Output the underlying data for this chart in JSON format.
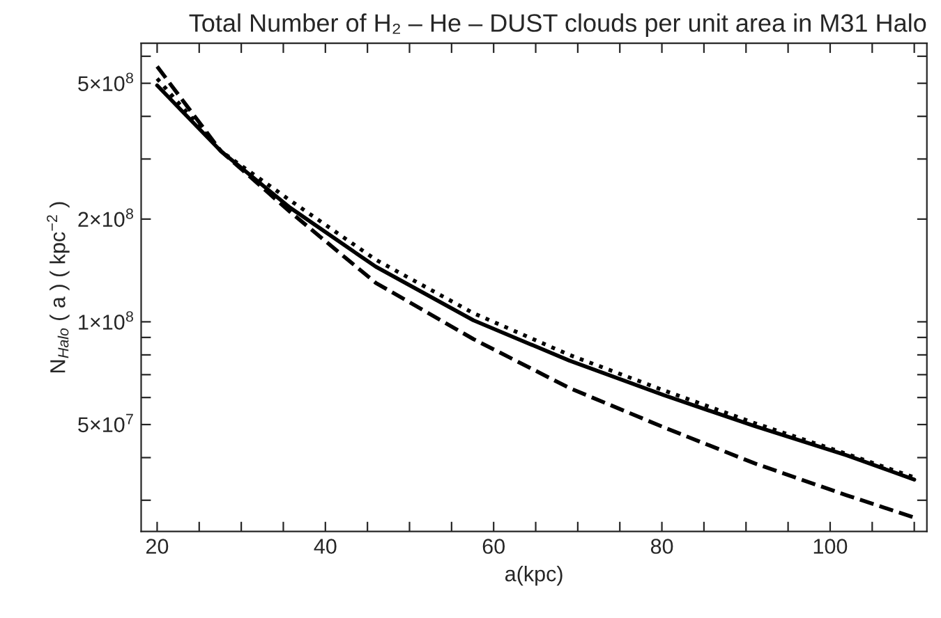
{
  "chart_data": {
    "type": "line",
    "title": "Total Number of H₂ – He – DUST clouds per unit area in M31 Halo",
    "xlabel": "a(kpc)",
    "ylabel": "N$_{Halo}$ ( a ) ( kpc$^{−2}$ )",
    "x": [
      20,
      27.6,
      35.8,
      46,
      57.6,
      69,
      80.2,
      91,
      102,
      110
    ],
    "series": [
      {
        "color": "#000000",
        "line_style": "solid",
        "values": [
          493000000.0,
          316000000.0,
          216000000.0,
          145000000.0,
          101000000.0,
          77000000.0,
          61000000.0,
          49500000.0,
          40600000.0,
          34500000.0
        ]
      },
      {
        "color": "#000000",
        "line_style": "dotted",
        "values": [
          516000000.0,
          316000000.0,
          227000000.0,
          152000000.0,
          106000000.0,
          80000000.0,
          63000000.0,
          50500000.0,
          41000000.0,
          35000000.0
        ]
      },
      {
        "color": "#000000",
        "line_style": "dashed",
        "values": [
          560000000.0,
          316000000.0,
          210000000.0,
          130000000.0,
          89000000.0,
          64000000.0,
          49100000.0,
          38500000.0,
          31000000.0,
          26700000.0
        ]
      }
    ],
    "log": "y",
    "grid": false,
    "legend": false,
    "marker": "none",
    "xlim": [
      18.1,
      111.5
    ],
    "ylim": [
      24300000.0,
      655000000.0
    ],
    "xticks": [
      20,
      {
        "value": 25,
        "label": null
      },
      {
        "value": 30,
        "label": null
      },
      {
        "value": 35,
        "label": null
      },
      40,
      {
        "value": 45,
        "label": null
      },
      {
        "value": 50,
        "label": null
      },
      {
        "value": 55,
        "label": null
      },
      60,
      {
        "value": 65,
        "label": null
      },
      {
        "value": 70,
        "label": null
      },
      {
        "value": 75,
        "label": null
      },
      80,
      {
        "value": 85,
        "label": null
      },
      {
        "value": 90,
        "label": null
      },
      {
        "value": 95,
        "label": null
      },
      100,
      {
        "value": 105,
        "label": null
      },
      {
        "value": 110,
        "label": null
      }
    ],
    "yticks": [
      {
        "value": 30000000.0,
        "label": null
      },
      {
        "value": 40000000.0,
        "label": null
      },
      {
        "value": 50000000.0,
        "label": "5×10$^{7}$"
      },
      {
        "value": 60000000.0,
        "label": null
      },
      {
        "value": 70000000.0,
        "label": null
      },
      {
        "value": 80000000.0,
        "label": null
      },
      {
        "value": 90000000.0,
        "label": null
      },
      {
        "value": 100000000.0,
        "label": "1×10$^{8}$"
      },
      {
        "value": 200000000.0,
        "label": "2×10$^{8}$"
      },
      {
        "value": 300000000.0,
        "label": null
      },
      {
        "value": 400000000.0,
        "label": null
      },
      {
        "value": 500000000.0,
        "label": "5×10$^{8}$"
      },
      {
        "value": 600000000.0,
        "label": null
      }
    ]
  }
}
